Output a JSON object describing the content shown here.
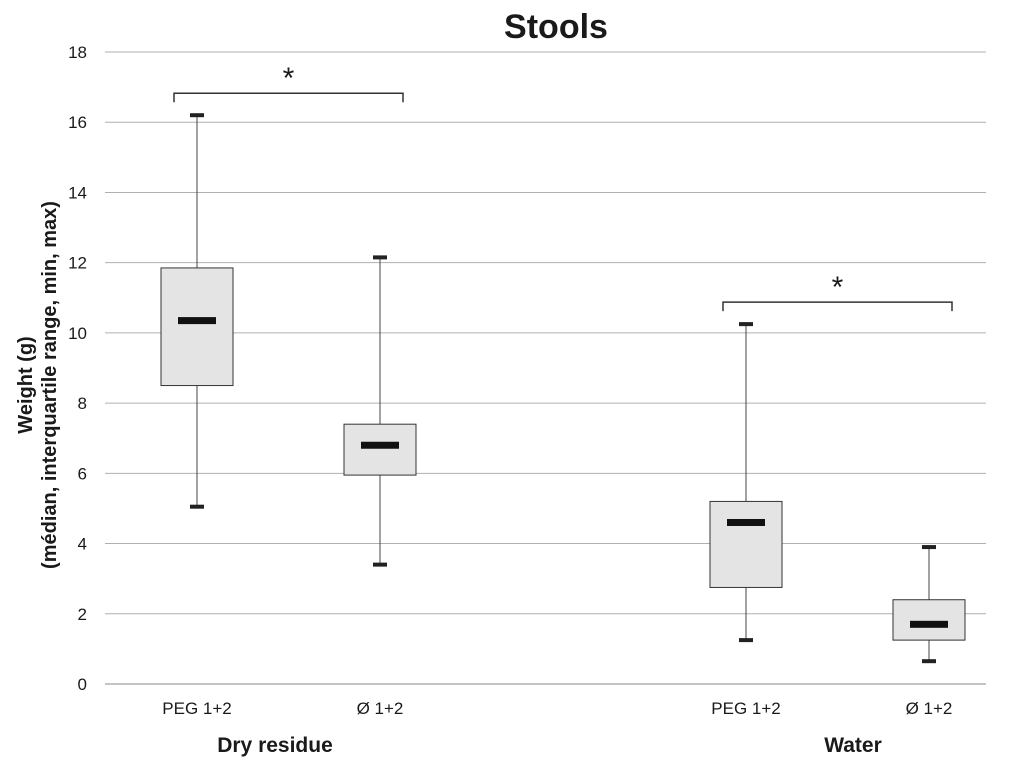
{
  "chart_data": {
    "type": "boxplot",
    "title": "Stools",
    "ylabel_line1": "Weight (g)",
    "ylabel_line2": "(médian, interquartile range, min, max)",
    "ylim": [
      0,
      18
    ],
    "yticks": [
      0,
      2,
      4,
      6,
      8,
      10,
      12,
      14,
      16,
      18
    ],
    "grid": true,
    "groups": [
      {
        "name": "Dry residue",
        "significance": "*",
        "boxes": [
          {
            "label": "PEG 1+2",
            "min": 5.05,
            "q1": 8.5,
            "median": 10.35,
            "q3": 11.85,
            "max": 16.2
          },
          {
            "label": "Ø 1+2",
            "min": 3.4,
            "q1": 5.95,
            "median": 6.8,
            "q3": 7.4,
            "max": 12.15
          }
        ]
      },
      {
        "name": "Water",
        "significance": "*",
        "boxes": [
          {
            "label": "PEG 1+2",
            "min": 1.25,
            "q1": 2.75,
            "median": 4.6,
            "q3": 5.2,
            "max": 10.25
          },
          {
            "label": "Ø 1+2",
            "min": 0.65,
            "q1": 1.25,
            "median": 1.7,
            "q3": 2.4,
            "max": 3.9
          }
        ]
      }
    ],
    "colors": {
      "box_fill": "#e4e4e4",
      "box_stroke": "#333333",
      "median": "#111111",
      "grid": "#b0b0b0"
    }
  }
}
